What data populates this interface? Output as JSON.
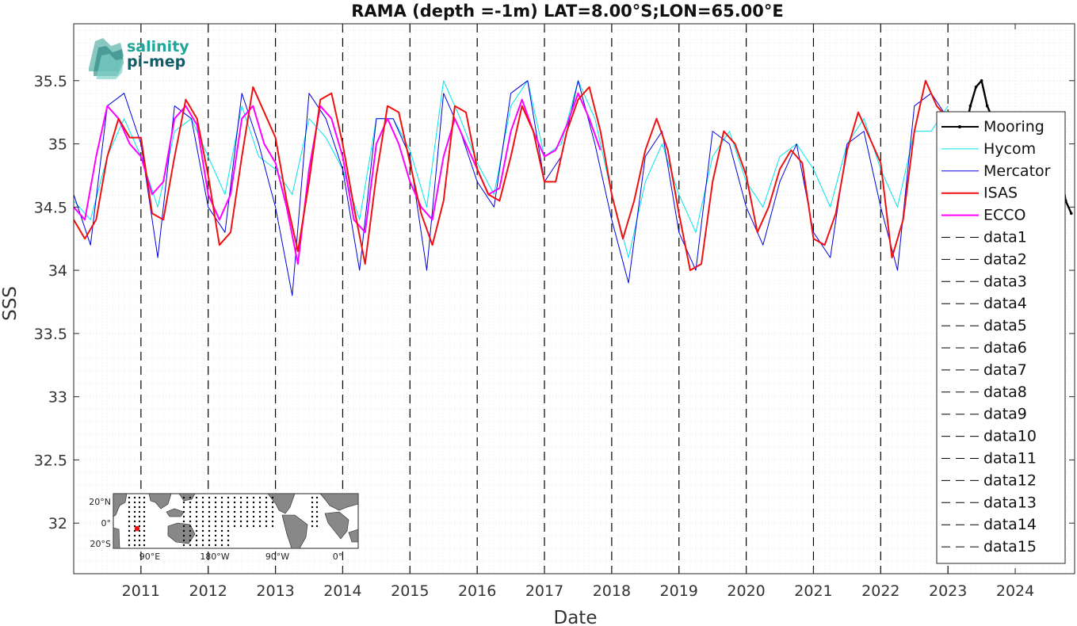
{
  "chart_data": {
    "type": "line",
    "title": "RAMA (depth =-1m) LAT=8.00°S;LON=65.00°E",
    "xlabel": "Date",
    "ylabel": "SSS",
    "xlim": [
      "2010-01",
      "2024-11"
    ],
    "ylim": [
      31.6,
      35.95
    ],
    "grid": true,
    "legend_position": "right",
    "x_ticks": [
      "2011",
      "2012",
      "2013",
      "2014",
      "2015",
      "2016",
      "2017",
      "2018",
      "2019",
      "2020",
      "2021",
      "2022",
      "2023",
      "2024"
    ],
    "y_ticks": [
      "32",
      "32.5",
      "33",
      "33.5",
      "34",
      "34.5",
      "35",
      "35.5"
    ],
    "vertical_markers": [
      "2011-01",
      "2012-01",
      "2013-01",
      "2014-01",
      "2015-01",
      "2016-01",
      "2017-01",
      "2018-01",
      "2019-01",
      "2020-01",
      "2021-01",
      "2022-01",
      "2023-01"
    ],
    "series": [
      {
        "name": "Mooring",
        "color": "#000000",
        "style": "solid-dots",
        "points": [
          [
            "2023-04",
            35.1
          ],
          [
            "2023-05",
            35.3
          ],
          [
            "2023-06",
            35.45
          ],
          [
            "2023-07",
            35.5
          ],
          [
            "2023-08",
            35.3
          ],
          [
            "2023-09",
            35.2
          ],
          [
            "2024-08",
            35.05
          ],
          [
            "2024-09",
            34.85
          ],
          [
            "2024-10",
            34.55
          ],
          [
            "2024-11",
            34.45
          ]
        ]
      },
      {
        "name": "Hycom",
        "color": "#00e5e8",
        "style": "solid",
        "points": [
          [
            "2010-01",
            34.55
          ],
          [
            "2010-04",
            34.4
          ],
          [
            "2010-07",
            34.9
          ],
          [
            "2010-10",
            35.2
          ],
          [
            "2011-01",
            34.9
          ],
          [
            "2011-04",
            34.5
          ],
          [
            "2011-07",
            35.1
          ],
          [
            "2011-10",
            35.2
          ],
          [
            "2012-01",
            34.9
          ],
          [
            "2012-04",
            34.6
          ],
          [
            "2012-07",
            35.3
          ],
          [
            "2012-10",
            34.9
          ],
          [
            "2013-01",
            34.8
          ],
          [
            "2013-04",
            34.6
          ],
          [
            "2013-07",
            35.2
          ],
          [
            "2013-10",
            35.05
          ],
          [
            "2014-01",
            34.8
          ],
          [
            "2014-04",
            34.4
          ],
          [
            "2014-07",
            35.2
          ],
          [
            "2014-10",
            35.2
          ],
          [
            "2015-01",
            34.95
          ],
          [
            "2015-04",
            34.5
          ],
          [
            "2015-07",
            35.5
          ],
          [
            "2015-10",
            35.2
          ],
          [
            "2016-01",
            34.85
          ],
          [
            "2016-04",
            34.6
          ],
          [
            "2016-07",
            35.3
          ],
          [
            "2016-10",
            35.5
          ],
          [
            "2017-01",
            34.9
          ],
          [
            "2017-04",
            35.0
          ],
          [
            "2017-07",
            35.5
          ],
          [
            "2017-10",
            35.2
          ],
          [
            "2018-01",
            34.6
          ],
          [
            "2018-04",
            34.1
          ],
          [
            "2018-07",
            34.7
          ],
          [
            "2018-10",
            35.0
          ],
          [
            "2019-01",
            34.6
          ],
          [
            "2019-04",
            34.3
          ],
          [
            "2019-07",
            34.9
          ],
          [
            "2019-10",
            35.1
          ],
          [
            "2020-01",
            34.7
          ],
          [
            "2020-04",
            34.5
          ],
          [
            "2020-07",
            34.9
          ],
          [
            "2020-10",
            35.0
          ],
          [
            "2021-01",
            34.8
          ],
          [
            "2021-04",
            34.5
          ],
          [
            "2021-07",
            35.0
          ],
          [
            "2021-10",
            35.2
          ],
          [
            "2022-01",
            34.8
          ],
          [
            "2022-04",
            34.5
          ],
          [
            "2022-07",
            35.1
          ],
          [
            "2022-10",
            35.1
          ],
          [
            "2023-01",
            35.3
          ]
        ]
      },
      {
        "name": "Mercator",
        "color": "#0000dd",
        "style": "solid",
        "points": [
          [
            "2010-01",
            34.6
          ],
          [
            "2010-04",
            34.2
          ],
          [
            "2010-07",
            35.3
          ],
          [
            "2010-10",
            35.4
          ],
          [
            "2011-01",
            35.0
          ],
          [
            "2011-04",
            34.1
          ],
          [
            "2011-07",
            35.3
          ],
          [
            "2011-10",
            35.2
          ],
          [
            "2012-01",
            34.5
          ],
          [
            "2012-04",
            34.3
          ],
          [
            "2012-07",
            35.4
          ],
          [
            "2012-10",
            35.0
          ],
          [
            "2013-01",
            34.5
          ],
          [
            "2013-04",
            33.8
          ],
          [
            "2013-07",
            35.4
          ],
          [
            "2013-10",
            35.2
          ],
          [
            "2014-01",
            34.8
          ],
          [
            "2014-04",
            34.0
          ],
          [
            "2014-07",
            35.2
          ],
          [
            "2014-10",
            35.2
          ],
          [
            "2015-01",
            34.9
          ],
          [
            "2015-04",
            34.0
          ],
          [
            "2015-07",
            35.4
          ],
          [
            "2015-10",
            35.1
          ],
          [
            "2016-01",
            34.7
          ],
          [
            "2016-04",
            34.5
          ],
          [
            "2016-07",
            35.4
          ],
          [
            "2016-10",
            35.5
          ],
          [
            "2017-01",
            34.7
          ],
          [
            "2017-04",
            34.9
          ],
          [
            "2017-07",
            35.5
          ],
          [
            "2017-10",
            35.0
          ],
          [
            "2018-01",
            34.4
          ],
          [
            "2018-04",
            33.9
          ],
          [
            "2018-07",
            34.9
          ],
          [
            "2018-10",
            35.1
          ],
          [
            "2019-01",
            34.3
          ],
          [
            "2019-04",
            34.0
          ],
          [
            "2019-07",
            35.1
          ],
          [
            "2019-10",
            35.0
          ],
          [
            "2020-01",
            34.5
          ],
          [
            "2020-04",
            34.2
          ],
          [
            "2020-07",
            34.7
          ],
          [
            "2020-10",
            35.0
          ],
          [
            "2021-01",
            34.3
          ],
          [
            "2021-04",
            34.1
          ],
          [
            "2021-07",
            35.0
          ],
          [
            "2021-10",
            35.1
          ],
          [
            "2022-01",
            34.5
          ],
          [
            "2022-04",
            34.0
          ],
          [
            "2022-07",
            35.3
          ],
          [
            "2022-10",
            35.4
          ],
          [
            "2023-01",
            35.2
          ]
        ]
      },
      {
        "name": "ISAS",
        "color": "#ee1111",
        "style": "solid",
        "points": [
          [
            "2010-01",
            34.4
          ],
          [
            "2010-03",
            34.25
          ],
          [
            "2010-05",
            34.4
          ],
          [
            "2010-07",
            34.9
          ],
          [
            "2010-09",
            35.2
          ],
          [
            "2010-11",
            35.05
          ],
          [
            "2011-01",
            35.05
          ],
          [
            "2011-03",
            34.45
          ],
          [
            "2011-05",
            34.4
          ],
          [
            "2011-07",
            34.9
          ],
          [
            "2011-09",
            35.35
          ],
          [
            "2011-11",
            35.2
          ],
          [
            "2012-01",
            34.75
          ],
          [
            "2012-03",
            34.2
          ],
          [
            "2012-05",
            34.3
          ],
          [
            "2012-07",
            34.9
          ],
          [
            "2012-09",
            35.45
          ],
          [
            "2012-11",
            35.25
          ],
          [
            "2013-01",
            35.05
          ],
          [
            "2013-03",
            34.55
          ],
          [
            "2013-05",
            34.15
          ],
          [
            "2013-07",
            34.7
          ],
          [
            "2013-09",
            35.35
          ],
          [
            "2013-11",
            35.4
          ],
          [
            "2014-01",
            35.0
          ],
          [
            "2014-03",
            34.5
          ],
          [
            "2014-05",
            34.05
          ],
          [
            "2014-07",
            34.75
          ],
          [
            "2014-09",
            35.3
          ],
          [
            "2014-11",
            35.25
          ],
          [
            "2015-01",
            34.85
          ],
          [
            "2015-03",
            34.45
          ],
          [
            "2015-05",
            34.2
          ],
          [
            "2015-07",
            34.55
          ],
          [
            "2015-09",
            35.3
          ],
          [
            "2015-11",
            35.25
          ],
          [
            "2016-01",
            34.8
          ],
          [
            "2016-03",
            34.6
          ],
          [
            "2016-05",
            34.55
          ],
          [
            "2016-07",
            34.9
          ],
          [
            "2016-09",
            35.3
          ],
          [
            "2016-11",
            35.1
          ],
          [
            "2017-01",
            34.7
          ],
          [
            "2017-03",
            34.7
          ],
          [
            "2017-05",
            35.1
          ],
          [
            "2017-07",
            35.35
          ],
          [
            "2017-09",
            35.45
          ],
          [
            "2017-11",
            35.1
          ],
          [
            "2018-01",
            34.6
          ],
          [
            "2018-03",
            34.25
          ],
          [
            "2018-05",
            34.55
          ],
          [
            "2018-07",
            34.95
          ],
          [
            "2018-09",
            35.2
          ],
          [
            "2018-11",
            34.95
          ],
          [
            "2019-01",
            34.45
          ],
          [
            "2019-03",
            34.0
          ],
          [
            "2019-05",
            34.05
          ],
          [
            "2019-07",
            34.7
          ],
          [
            "2019-09",
            35.1
          ],
          [
            "2019-11",
            35.0
          ],
          [
            "2020-01",
            34.75
          ],
          [
            "2020-03",
            34.3
          ],
          [
            "2020-05",
            34.5
          ],
          [
            "2020-07",
            34.8
          ],
          [
            "2020-09",
            34.95
          ],
          [
            "2020-11",
            34.85
          ],
          [
            "2021-01",
            34.25
          ],
          [
            "2021-03",
            34.2
          ],
          [
            "2021-05",
            34.45
          ],
          [
            "2021-07",
            34.95
          ],
          [
            "2021-09",
            35.25
          ],
          [
            "2021-11",
            35.05
          ],
          [
            "2022-01",
            34.85
          ],
          [
            "2022-03",
            34.1
          ],
          [
            "2022-05",
            34.4
          ],
          [
            "2022-07",
            35.1
          ],
          [
            "2022-09",
            35.5
          ],
          [
            "2022-11",
            35.3
          ],
          [
            "2023-01",
            35.2
          ]
        ]
      },
      {
        "name": "ECCO",
        "color": "#ff00ff",
        "style": "solid",
        "points": [
          [
            "2010-01",
            34.5
          ],
          [
            "2010-03",
            34.4
          ],
          [
            "2010-05",
            34.9
          ],
          [
            "2010-07",
            35.3
          ],
          [
            "2010-09",
            35.2
          ],
          [
            "2010-11",
            35.0
          ],
          [
            "2011-01",
            34.9
          ],
          [
            "2011-03",
            34.6
          ],
          [
            "2011-05",
            34.7
          ],
          [
            "2011-07",
            35.2
          ],
          [
            "2011-09",
            35.3
          ],
          [
            "2011-11",
            35.15
          ],
          [
            "2012-01",
            34.6
          ],
          [
            "2012-03",
            34.4
          ],
          [
            "2012-05",
            34.6
          ],
          [
            "2012-07",
            35.2
          ],
          [
            "2012-09",
            35.3
          ],
          [
            "2012-11",
            35.0
          ],
          [
            "2013-01",
            34.85
          ],
          [
            "2013-03",
            34.5
          ],
          [
            "2013-05",
            34.05
          ],
          [
            "2013-07",
            34.8
          ],
          [
            "2013-09",
            35.3
          ],
          [
            "2013-11",
            35.2
          ],
          [
            "2014-01",
            34.9
          ],
          [
            "2014-03",
            34.4
          ],
          [
            "2014-05",
            34.3
          ],
          [
            "2014-07",
            35.0
          ],
          [
            "2014-09",
            35.2
          ],
          [
            "2014-11",
            35.0
          ],
          [
            "2015-01",
            34.7
          ],
          [
            "2015-03",
            34.5
          ],
          [
            "2015-05",
            34.4
          ],
          [
            "2015-07",
            34.9
          ],
          [
            "2015-09",
            35.2
          ],
          [
            "2015-11",
            35.0
          ],
          [
            "2016-01",
            34.8
          ],
          [
            "2016-03",
            34.6
          ],
          [
            "2016-05",
            34.65
          ],
          [
            "2016-07",
            35.1
          ],
          [
            "2016-09",
            35.35
          ],
          [
            "2016-11",
            35.1
          ],
          [
            "2017-01",
            34.9
          ],
          [
            "2017-03",
            34.95
          ],
          [
            "2017-05",
            35.15
          ],
          [
            "2017-07",
            35.4
          ],
          [
            "2017-09",
            35.2
          ],
          [
            "2017-11",
            34.95
          ]
        ]
      },
      {
        "name": "data1",
        "color": "#000000",
        "style": "dashed",
        "points": []
      },
      {
        "name": "data2",
        "color": "#000000",
        "style": "dashed",
        "points": []
      },
      {
        "name": "data3",
        "color": "#000000",
        "style": "dashed",
        "points": []
      },
      {
        "name": "data4",
        "color": "#000000",
        "style": "dashed",
        "points": []
      },
      {
        "name": "data5",
        "color": "#000000",
        "style": "dashed",
        "points": []
      },
      {
        "name": "data6",
        "color": "#000000",
        "style": "dashed",
        "points": []
      },
      {
        "name": "data7",
        "color": "#000000",
        "style": "dashed",
        "points": []
      },
      {
        "name": "data8",
        "color": "#000000",
        "style": "dashed",
        "points": []
      },
      {
        "name": "data9",
        "color": "#000000",
        "style": "dashed",
        "points": []
      },
      {
        "name": "data10",
        "color": "#000000",
        "style": "dashed",
        "points": []
      },
      {
        "name": "data11",
        "color": "#000000",
        "style": "dashed",
        "points": []
      },
      {
        "name": "data12",
        "color": "#000000",
        "style": "dashed",
        "points": []
      },
      {
        "name": "data13",
        "color": "#000000",
        "style": "dashed",
        "points": []
      },
      {
        "name": "data14",
        "color": "#000000",
        "style": "dashed",
        "points": []
      },
      {
        "name": "data15",
        "color": "#000000",
        "style": "dashed",
        "points": []
      }
    ]
  },
  "logo": {
    "line1": "salinity",
    "line2": "pi-mep"
  },
  "inset_map": {
    "lat_ticks": [
      "20°N",
      "0°",
      "20°S"
    ],
    "lon_ticks": [
      "90°E",
      "180°W",
      "90°W",
      "0°"
    ],
    "marker_color": "#ee1111",
    "land_color": "#888888",
    "sea_color": "#ffffff"
  }
}
